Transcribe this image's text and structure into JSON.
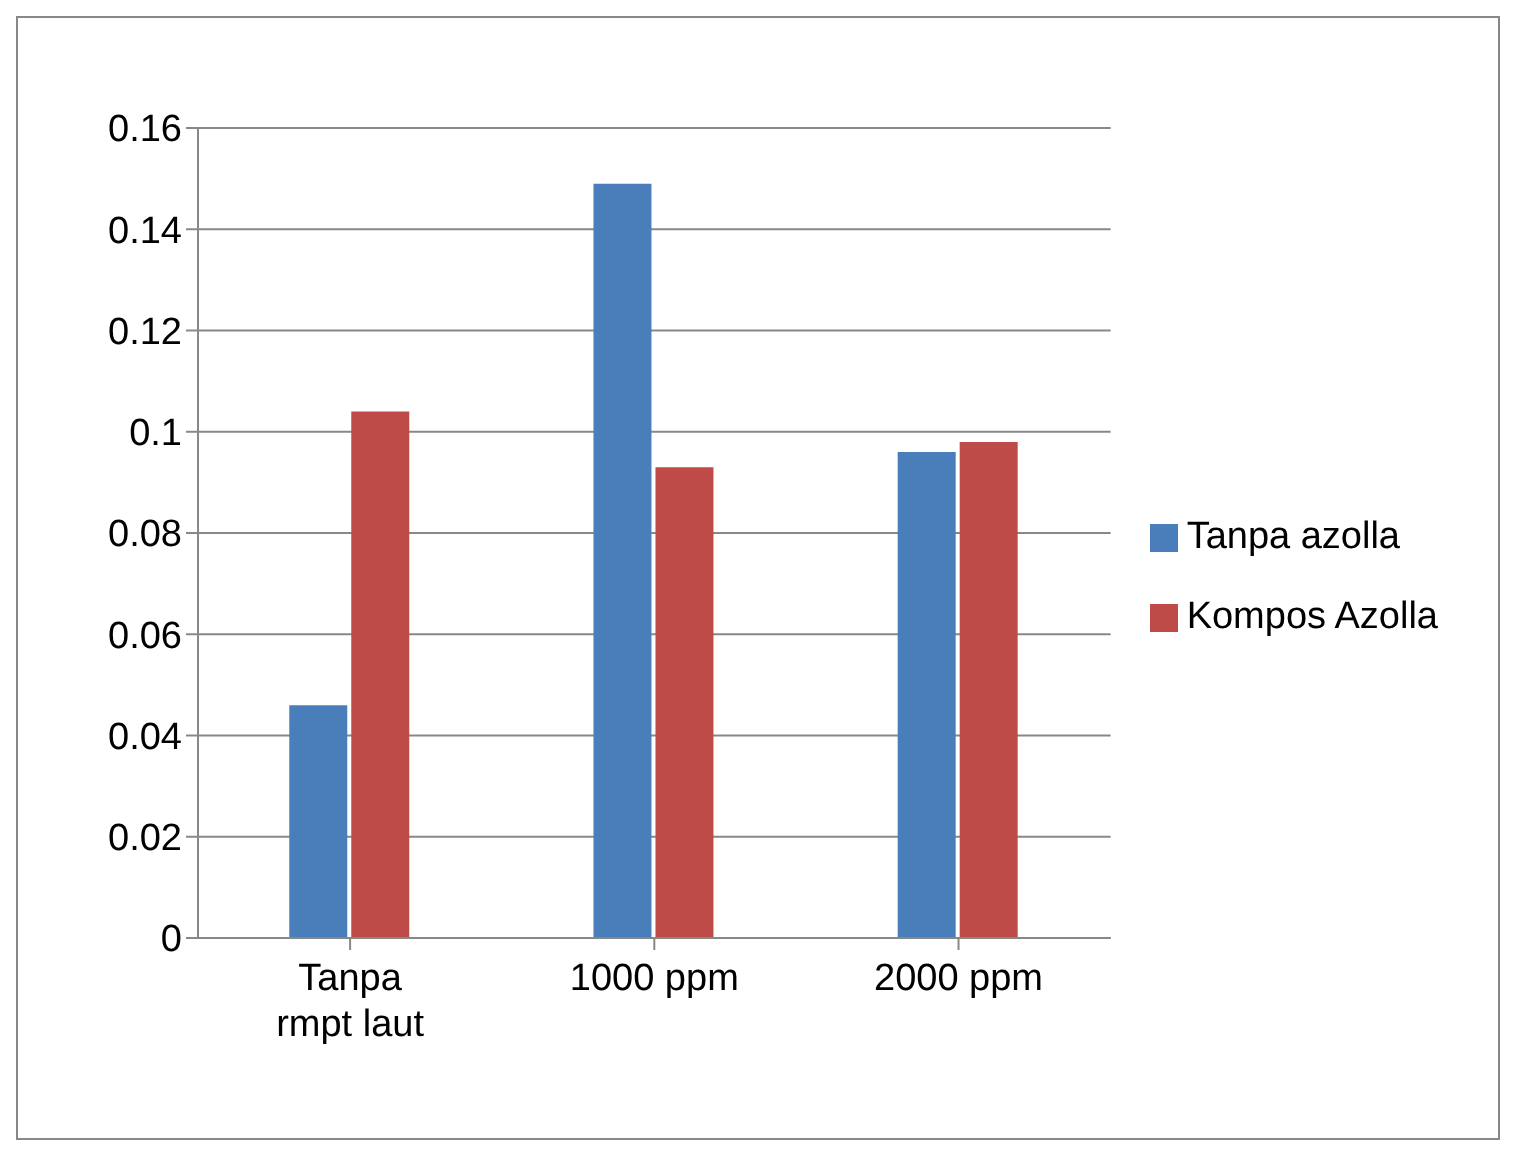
{
  "chart_data": {
    "type": "bar",
    "categories": [
      "Tanpa rmpt laut",
      "1000 ppm",
      "2000 ppm"
    ],
    "series": [
      {
        "name": "Tanpa azolla",
        "color": "#4a7ebb",
        "values": [
          0.046,
          0.149,
          0.096
        ]
      },
      {
        "name": "Kompos Azolla",
        "color": "#be4b48",
        "values": [
          0.104,
          0.093,
          0.098
        ]
      }
    ],
    "ylim": [
      0,
      0.16
    ],
    "yticks": [
      0,
      0.02,
      0.04,
      0.06,
      0.08,
      0.1,
      0.12,
      0.14,
      0.16
    ],
    "grid": "y",
    "legend": "right"
  }
}
